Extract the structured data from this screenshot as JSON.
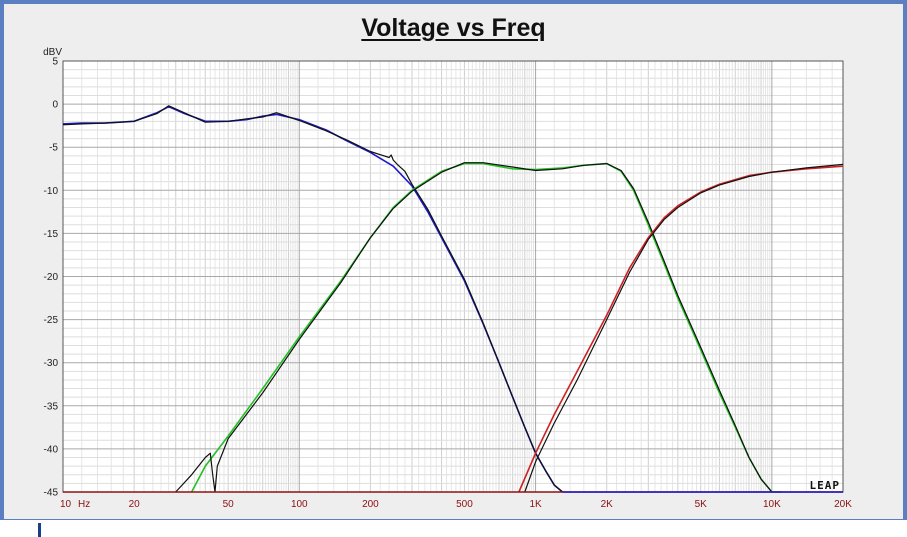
{
  "chart_data": {
    "type": "line",
    "title": "Voltage vs Freq",
    "ylabel": "dBV",
    "xlabel": "",
    "x_scale": "log",
    "xlim": [
      10,
      20000
    ],
    "ylim": [
      -45,
      5
    ],
    "grid": true,
    "y_ticks": [
      5,
      0,
      -5,
      -10,
      -15,
      -20,
      -25,
      -30,
      -35,
      -40,
      -45
    ],
    "x_ticks": [
      {
        "value": 10,
        "label": "10"
      },
      {
        "value": 20,
        "label": "20"
      },
      {
        "value": 50,
        "label": "50"
      },
      {
        "value": 100,
        "label": "100"
      },
      {
        "value": 200,
        "label": "200"
      },
      {
        "value": 500,
        "label": "500"
      },
      {
        "value": 1000,
        "label": "1K"
      },
      {
        "value": 2000,
        "label": "2K"
      },
      {
        "value": 5000,
        "label": "5K"
      },
      {
        "value": 10000,
        "label": "10K"
      },
      {
        "value": 20000,
        "label": "20K"
      }
    ],
    "x_unit_label": "Hz",
    "brand_label": "LEAP",
    "series": [
      {
        "color": "#1a1acc",
        "x": [
          10,
          12,
          15,
          20,
          25,
          28,
          32,
          40,
          50,
          60,
          70,
          80,
          100,
          130,
          160,
          200,
          250,
          300,
          350,
          400,
          500,
          600,
          700,
          800,
          900,
          1000,
          1100,
          1200,
          1300
        ],
        "y": [
          -2.3,
          -2.2,
          -2.2,
          -2.0,
          -1.0,
          -0.3,
          -1.0,
          -2.0,
          -2.0,
          -1.8,
          -1.4,
          -1.2,
          -1.8,
          -3.0,
          -4.3,
          -5.6,
          -7.2,
          -9.5,
          -12.5,
          -15.5,
          -20.5,
          -25.5,
          -30,
          -34,
          -37.5,
          -40.5,
          -42.5,
          -44.2,
          -45
        ]
      },
      {
        "color": "#111111",
        "x": [
          10,
          12,
          15,
          20,
          25,
          28,
          32,
          40,
          50,
          60,
          70,
          80,
          100,
          130,
          160,
          200,
          240,
          245,
          250,
          260,
          280,
          300,
          350,
          400,
          500,
          600,
          700,
          800,
          900,
          1000,
          1100,
          1200,
          1300
        ],
        "y": [
          -2.4,
          -2.3,
          -2.2,
          -2.0,
          -1.1,
          -0.2,
          -0.9,
          -2.1,
          -2.0,
          -1.7,
          -1.5,
          -1.0,
          -1.9,
          -3.1,
          -4.2,
          -5.5,
          -6.2,
          -5.9,
          -6.5,
          -7.0,
          -7.8,
          -9.3,
          -12.2,
          -15.3,
          -20.3,
          -25.4,
          -30.0,
          -34.0,
          -37.5,
          -40.5,
          -42.5,
          -44.2,
          -45
        ]
      },
      {
        "color": "#22c022",
        "x": [
          35,
          40,
          50,
          70,
          100,
          150,
          200,
          250,
          300,
          400,
          500,
          600,
          800,
          1000,
          1300,
          1600,
          2000,
          2300,
          2600,
          3000,
          3500,
          4000,
          5000,
          6000,
          7000,
          8000,
          9000,
          10000,
          11000
        ],
        "y": [
          -45,
          -42,
          -38.5,
          -33,
          -27,
          -20.5,
          -15.5,
          -12.0,
          -10.0,
          -7.8,
          -6.9,
          -6.9,
          -7.5,
          -7.6,
          -7.4,
          -7.1,
          -6.9,
          -7.8,
          -10,
          -14,
          -18.5,
          -22.5,
          -28.5,
          -33.5,
          -37.5,
          -41,
          -43.5,
          -45,
          -45
        ]
      },
      {
        "color": "#111111",
        "x": [
          30,
          35,
          40,
          42,
          43,
          44,
          45,
          50,
          70,
          100,
          150,
          200,
          250,
          300,
          400,
          500,
          600,
          800,
          1000,
          1300,
          1600,
          2000,
          2300,
          2600,
          3000,
          3500,
          4000,
          5000,
          6000,
          7000,
          8000,
          9000,
          10000
        ],
        "y": [
          -45,
          -43,
          -41,
          -40.5,
          -43,
          -45,
          -42,
          -38.8,
          -33.5,
          -27.3,
          -20.7,
          -15.5,
          -12.1,
          -10.1,
          -7.9,
          -6.8,
          -6.8,
          -7.3,
          -7.7,
          -7.5,
          -7.1,
          -6.9,
          -7.7,
          -9.8,
          -13.7,
          -18.2,
          -22.2,
          -28.2,
          -33.2,
          -37.3,
          -41,
          -43.5,
          -45
        ]
      },
      {
        "color": "#cc2222",
        "x": [
          850,
          1000,
          1200,
          1500,
          2000,
          2500,
          3000,
          3500,
          4000,
          5000,
          6000,
          8000,
          10000,
          14000,
          20000
        ],
        "y": [
          -45,
          -40.5,
          -36,
          -31,
          -24.5,
          -19,
          -15.5,
          -13.2,
          -11.8,
          -10.2,
          -9.3,
          -8.3,
          -7.9,
          -7.5,
          -7.2
        ]
      },
      {
        "color": "#111111",
        "x": [
          900,
          1000,
          1200,
          1500,
          2000,
          2500,
          3000,
          3500,
          4000,
          5000,
          6000,
          8000,
          10000,
          14000,
          20000
        ],
        "y": [
          -45,
          -41.5,
          -37,
          -32,
          -25,
          -19.5,
          -15.7,
          -13.4,
          -12.0,
          -10.3,
          -9.4,
          -8.4,
          -7.9,
          -7.4,
          -7.0
        ]
      }
    ]
  }
}
